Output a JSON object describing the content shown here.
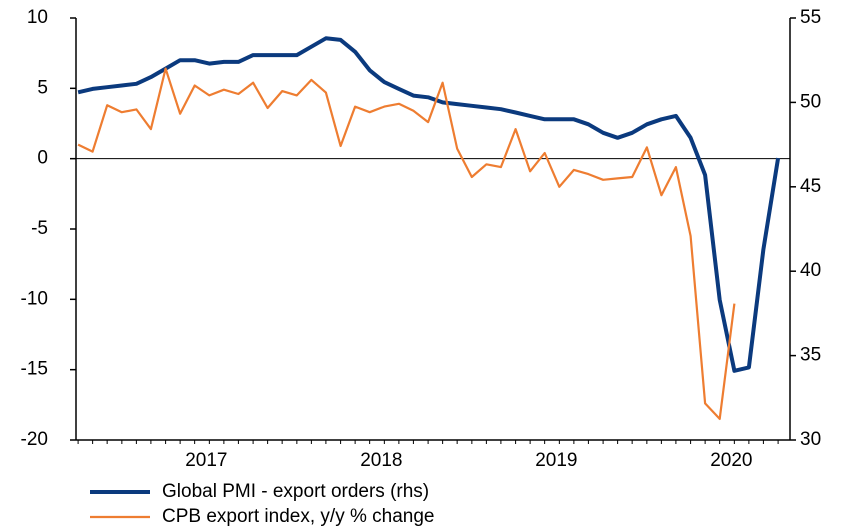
{
  "chart_data": {
    "type": "line",
    "x": [
      2016.667,
      2016.75,
      2016.833,
      2016.917,
      2017.0,
      2017.083,
      2017.167,
      2017.25,
      2017.333,
      2017.417,
      2017.5,
      2017.583,
      2017.667,
      2017.75,
      2017.833,
      2017.917,
      2018.0,
      2018.083,
      2018.167,
      2018.25,
      2018.333,
      2018.417,
      2018.5,
      2018.583,
      2018.667,
      2018.75,
      2018.833,
      2018.917,
      2019.0,
      2019.083,
      2019.167,
      2019.25,
      2019.333,
      2019.417,
      2019.5,
      2019.583,
      2019.667,
      2019.75,
      2019.833,
      2019.917,
      2020.0,
      2020.083,
      2020.167,
      2020.25,
      2020.333,
      2020.417,
      2020.5,
      2020.583,
      2020.667
    ],
    "series": [
      {
        "name": "Global PMI - export orders (rhs)",
        "color": "#0b3a7e",
        "axis": "y2",
        "values": [
          50.6,
          50.8,
          50.9,
          51.0,
          51.1,
          51.5,
          52.0,
          52.5,
          52.5,
          52.3,
          52.4,
          52.4,
          52.8,
          52.8,
          52.8,
          52.8,
          53.3,
          53.8,
          53.7,
          53.0,
          51.9,
          51.2,
          50.8,
          50.4,
          50.3,
          50.0,
          49.9,
          49.8,
          49.7,
          49.6,
          49.4,
          49.2,
          49.0,
          49.0,
          49.0,
          48.7,
          48.2,
          47.9,
          48.2,
          48.7,
          49.0,
          49.2,
          47.9,
          45.7,
          38.3,
          34.1,
          34.3,
          41.3,
          46.7
        ]
      },
      {
        "name": "CPB export index, y/y % change",
        "color": "#ee7d31",
        "values": [
          1.0,
          0.5,
          3.8,
          3.3,
          3.5,
          2.1,
          6.4,
          3.2,
          5.2,
          4.5,
          4.9,
          4.6,
          5.4,
          3.6,
          4.8,
          4.5,
          5.6,
          4.7,
          0.9,
          3.7,
          3.3,
          3.7,
          3.9,
          3.4,
          2.6,
          5.4,
          0.7,
          -1.3,
          -0.4,
          -0.6,
          2.1,
          -0.9,
          0.4,
          -2.0,
          -0.8,
          -1.1,
          -1.5,
          -1.4,
          -1.3,
          0.8,
          -2.6,
          -0.6,
          -5.5,
          -17.4,
          -18.5,
          -10.3,
          null,
          null,
          null
        ]
      }
    ],
    "xlim": [
      2016.655,
      2020.735
    ],
    "xticks": [
      {
        "value": 2017.4,
        "label": "2017"
      },
      {
        "value": 2018.4,
        "label": "2018"
      },
      {
        "value": 2019.4,
        "label": "2019"
      },
      {
        "value": 2020.4,
        "label": "2020"
      }
    ],
    "ylim": [
      -20,
      10
    ],
    "yticks": [
      -20,
      -15,
      -10,
      -5,
      0,
      5,
      10
    ],
    "y2lim": [
      30,
      55
    ],
    "y2ticks": [
      30,
      35,
      40,
      45,
      50,
      55
    ]
  }
}
